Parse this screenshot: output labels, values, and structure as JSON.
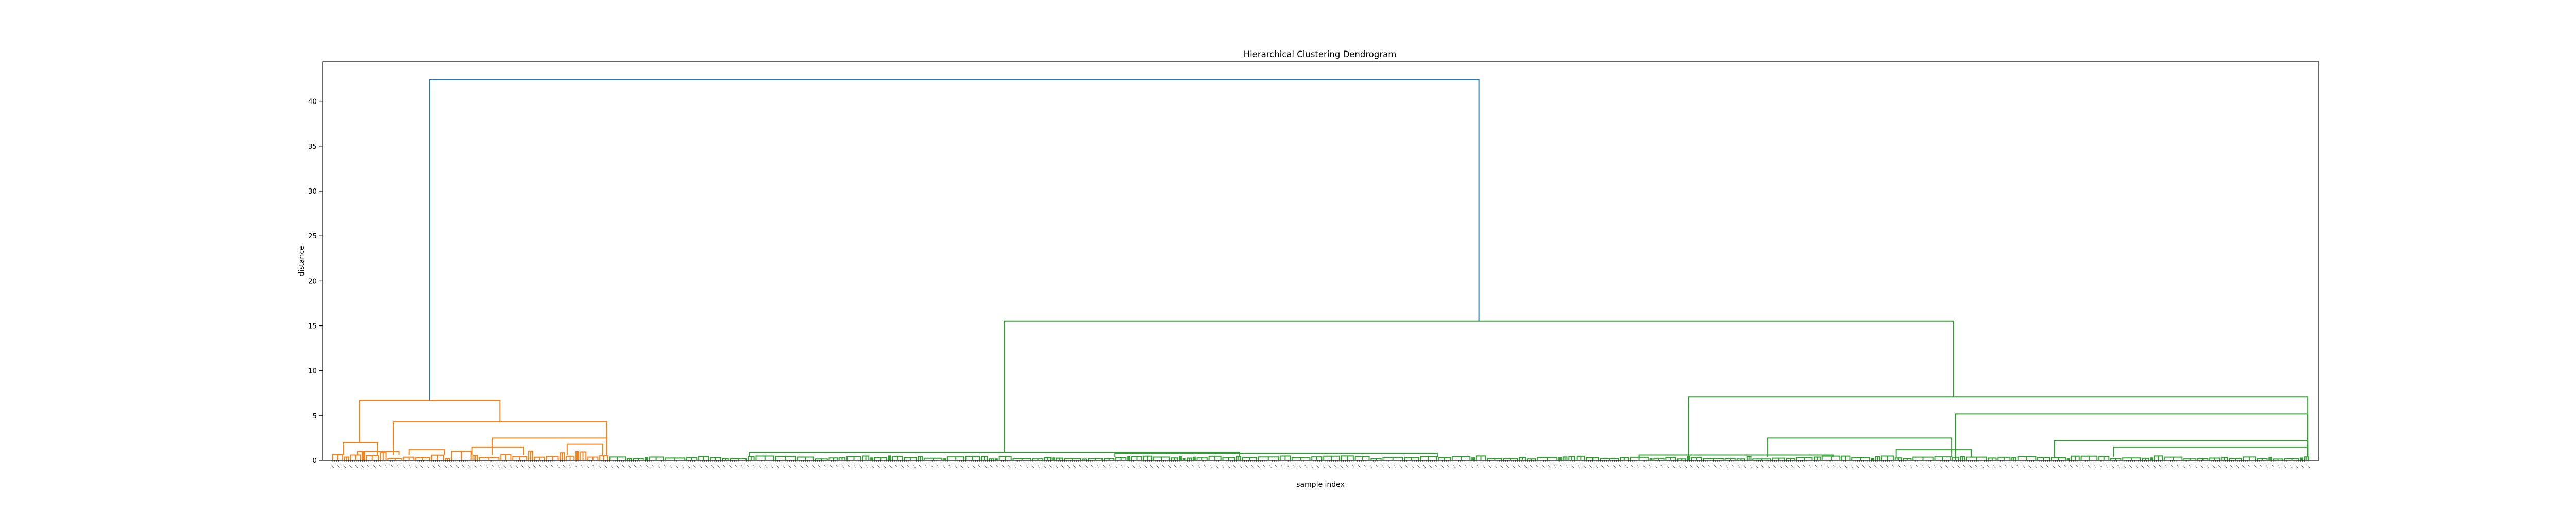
{
  "chart_data": {
    "type": "dendrogram",
    "title": "Hierarchical Clustering Dendrogram",
    "xlabel": "sample index",
    "ylabel": "distance",
    "ylim": [
      0,
      44.4
    ],
    "y_ticks": [
      0,
      5,
      10,
      15,
      20,
      25,
      30,
      35,
      40
    ],
    "grid": false,
    "legend": "none",
    "colors": {
      "root": "#1f77b4",
      "cluster_1": "#ff7f0e",
      "cluster_2": "#2ca02c",
      "axes": "#000000"
    },
    "leaf_count": 1000,
    "root_merge_height": 42.4,
    "clusters": [
      {
        "color": "cluster_1",
        "merge_height": 6.7,
        "leaf_range": [
          0,
          140
        ],
        "sub_merges": [
          {
            "height": 4.3,
            "leaf_range": [
              30,
              140
            ]
          },
          {
            "height": 2.5,
            "leaf_range": [
              80,
              140
            ]
          },
          {
            "height": 2.0,
            "leaf_range": [
              5,
              24
            ]
          },
          {
            "height": 1.8,
            "leaf_range": [
              118,
              138
            ]
          },
          {
            "height": 1.5,
            "leaf_range": [
              70,
              98
            ]
          },
          {
            "height": 1.2,
            "leaf_range": [
              38,
              58
            ]
          },
          {
            "height": 1.0,
            "leaf_range": [
              12,
              35
            ]
          }
        ]
      },
      {
        "color": "cluster_2",
        "merge_height": 15.5,
        "leaf_range": [
          140,
          1000
        ],
        "sub_merges": [
          {
            "height": 7.1,
            "leaf_range": [
              685,
              1000
            ]
          },
          {
            "height": 5.2,
            "leaf_range": [
              820,
              1000
            ]
          },
          {
            "height": 2.5,
            "leaf_range": [
              725,
              820
            ]
          },
          {
            "height": 2.2,
            "leaf_range": [
              870,
              1000
            ]
          },
          {
            "height": 1.5,
            "leaf_range": [
              900,
              1000
            ]
          },
          {
            "height": 1.2,
            "leaf_range": [
              790,
              830
            ]
          },
          {
            "height": 0.9,
            "leaf_range": [
              210,
              460
            ]
          },
          {
            "height": 0.8,
            "leaf_range": [
              395,
              560
            ]
          },
          {
            "height": 0.6,
            "leaf_range": [
              660,
              760
            ]
          }
        ]
      }
    ]
  }
}
